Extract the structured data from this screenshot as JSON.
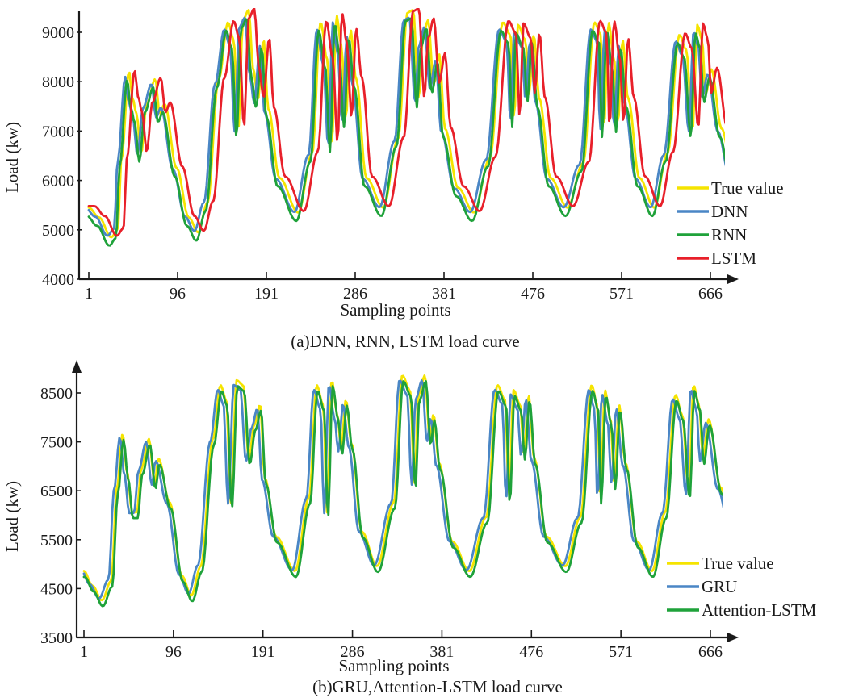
{
  "chart_data": [
    {
      "type": "line",
      "title": "(a)DNN, RNN, LSTM load curve",
      "xlabel": "Sampling points",
      "ylabel": "Load (kw)",
      "xlim": [
        1,
        700
      ],
      "ylim": [
        4000,
        9400
      ],
      "x_ticks": [
        1,
        96,
        191,
        286,
        381,
        476,
        571,
        666
      ],
      "y_ticks": [
        4000,
        5000,
        6000,
        7000,
        8000,
        9000
      ],
      "grid": false,
      "legend_position": "bottom-right",
      "series": [
        {
          "name": "True value",
          "color": "#f5e400",
          "shift": 0,
          "gain": 1.0,
          "offset": 50
        },
        {
          "name": "DNN",
          "color": "#4a86c5",
          "shift": -4,
          "gain": 0.96,
          "offset": 0
        },
        {
          "name": "RNN",
          "color": "#1fa23a",
          "shift": -2,
          "gain": 1.0,
          "offset": -120
        },
        {
          "name": "LSTM",
          "color": "#e8202a",
          "shift": 6,
          "gain": 1.0,
          "offset": 80
        }
      ],
      "keypoints": [
        [
          1,
          5400
        ],
        [
          12,
          5200
        ],
        [
          25,
          4800
        ],
        [
          32,
          4950
        ],
        [
          36,
          6400
        ],
        [
          44,
          8150
        ],
        [
          48,
          7600
        ],
        [
          52,
          7300
        ],
        [
          57,
          6500
        ],
        [
          63,
          7500
        ],
        [
          72,
          8000
        ],
        [
          77,
          7300
        ],
        [
          82,
          7500
        ],
        [
          95,
          6200
        ],
        [
          108,
          5200
        ],
        [
          118,
          4900
        ],
        [
          128,
          5500
        ],
        [
          140,
          8000
        ],
        [
          150,
          9150
        ],
        [
          156,
          8800
        ],
        [
          161,
          7000
        ],
        [
          166,
          9200
        ],
        [
          172,
          9400
        ],
        [
          177,
          8200
        ],
        [
          182,
          7600
        ],
        [
          188,
          8800
        ],
        [
          193,
          7400
        ],
        [
          205,
          6000
        ],
        [
          225,
          5300
        ],
        [
          240,
          6500
        ],
        [
          249,
          9150
        ],
        [
          256,
          8400
        ],
        [
          261,
          6700
        ],
        [
          266,
          9300
        ],
        [
          271,
          8700
        ],
        [
          276,
          7200
        ],
        [
          281,
          9000
        ],
        [
          287,
          8000
        ],
        [
          298,
          6000
        ],
        [
          316,
          5400
        ],
        [
          332,
          6800
        ],
        [
          342,
          9350
        ],
        [
          348,
          9400
        ],
        [
          354,
          7600
        ],
        [
          358,
          8800
        ],
        [
          364,
          9200
        ],
        [
          370,
          7900
        ],
        [
          376,
          8500
        ],
        [
          382,
          7000
        ],
        [
          396,
          5800
        ],
        [
          413,
          5300
        ],
        [
          430,
          6400
        ],
        [
          444,
          9150
        ],
        [
          452,
          8900
        ],
        [
          456,
          7200
        ],
        [
          460,
          9100
        ],
        [
          468,
          8800
        ],
        [
          472,
          7700
        ],
        [
          477,
          8900
        ],
        [
          483,
          7600
        ],
        [
          495,
          6000
        ],
        [
          513,
          5400
        ],
        [
          530,
          6300
        ],
        [
          542,
          9150
        ],
        [
          549,
          8900
        ],
        [
          552,
          7000
        ],
        [
          557,
          9150
        ],
        [
          563,
          8400
        ],
        [
          567,
          7100
        ],
        [
          572,
          8800
        ],
        [
          578,
          7600
        ],
        [
          590,
          6000
        ],
        [
          606,
          5400
        ],
        [
          620,
          6500
        ],
        [
          633,
          8900
        ],
        [
          640,
          8600
        ],
        [
          647,
          7000
        ],
        [
          652,
          9100
        ],
        [
          657,
          8800
        ],
        [
          661,
          7700
        ],
        [
          667,
          8200
        ],
        [
          678,
          7000
        ],
        [
          690,
          6100
        ]
      ]
    },
    {
      "type": "line",
      "title": "(b)GRU,Attention-LSTM load curve",
      "xlabel": "Sampling points",
      "ylabel": "Load (kw)",
      "xlim": [
        1,
        700
      ],
      "ylim": [
        3500,
        9000
      ],
      "x_ticks": [
        1,
        96,
        191,
        286,
        381,
        476,
        571,
        666
      ],
      "y_ticks": [
        3500,
        4500,
        5500,
        6500,
        7500,
        8500
      ],
      "grid": false,
      "legend_position": "bottom-right",
      "series": [
        {
          "name": "True value",
          "color": "#f5e400",
          "shift": 0,
          "gain": 1.0,
          "offset": 60
        },
        {
          "name": "GRU",
          "color": "#4a86c5",
          "shift": -3,
          "gain": 0.97,
          "offset": 20
        },
        {
          "name": "Attention-LSTM",
          "color": "#1fa23a",
          "shift": 1,
          "gain": 1.0,
          "offset": -60
        }
      ],
      "keypoints": [
        [
          1,
          4800
        ],
        [
          10,
          4500
        ],
        [
          20,
          4200
        ],
        [
          30,
          4600
        ],
        [
          36,
          6500
        ],
        [
          42,
          7600
        ],
        [
          47,
          6800
        ],
        [
          52,
          6000
        ],
        [
          57,
          6000
        ],
        [
          62,
          6900
        ],
        [
          70,
          7500
        ],
        [
          76,
          6600
        ],
        [
          80,
          7100
        ],
        [
          92,
          6200
        ],
        [
          105,
          4700
        ],
        [
          115,
          4300
        ],
        [
          125,
          4900
        ],
        [
          138,
          7500
        ],
        [
          146,
          8600
        ],
        [
          152,
          8300
        ],
        [
          157,
          6200
        ],
        [
          163,
          8700
        ],
        [
          170,
          8600
        ],
        [
          176,
          7100
        ],
        [
          182,
          7800
        ],
        [
          188,
          8200
        ],
        [
          193,
          6700
        ],
        [
          205,
          5500
        ],
        [
          225,
          4800
        ],
        [
          240,
          6300
        ],
        [
          248,
          8600
        ],
        [
          255,
          8200
        ],
        [
          259,
          6000
        ],
        [
          264,
          8700
        ],
        [
          270,
          8000
        ],
        [
          274,
          7300
        ],
        [
          279,
          8300
        ],
        [
          285,
          7400
        ],
        [
          296,
          5600
        ],
        [
          312,
          4900
        ],
        [
          330,
          6200
        ],
        [
          339,
          8800
        ],
        [
          347,
          8500
        ],
        [
          352,
          6600
        ],
        [
          356,
          8400
        ],
        [
          363,
          8800
        ],
        [
          368,
          7500
        ],
        [
          372,
          8000
        ],
        [
          378,
          7000
        ],
        [
          392,
          5400
        ],
        [
          410,
          4800
        ],
        [
          428,
          5900
        ],
        [
          440,
          8600
        ],
        [
          448,
          8300
        ],
        [
          452,
          6300
        ],
        [
          457,
          8500
        ],
        [
          464,
          8200
        ],
        [
          468,
          7200
        ],
        [
          473,
          8400
        ],
        [
          479,
          7100
        ],
        [
          492,
          5500
        ],
        [
          512,
          4900
        ],
        [
          528,
          5900
        ],
        [
          540,
          8600
        ],
        [
          546,
          8200
        ],
        [
          549,
          6300
        ],
        [
          554,
          8500
        ],
        [
          560,
          7900
        ],
        [
          564,
          6600
        ],
        [
          569,
          8200
        ],
        [
          576,
          7000
        ],
        [
          588,
          5400
        ],
        [
          604,
          4800
        ],
        [
          618,
          6000
        ],
        [
          629,
          8400
        ],
        [
          636,
          8000
        ],
        [
          643,
          6400
        ],
        [
          648,
          8600
        ],
        [
          654,
          8200
        ],
        [
          658,
          7100
        ],
        [
          664,
          7900
        ],
        [
          677,
          6500
        ],
        [
          690,
          5600
        ]
      ]
    }
  ]
}
